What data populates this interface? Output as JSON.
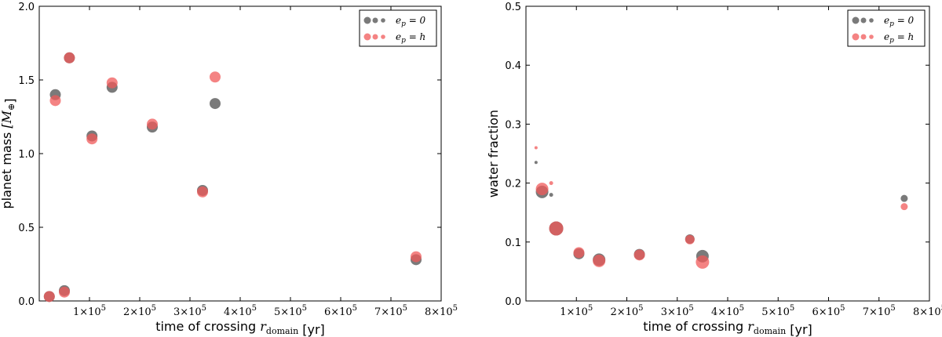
{
  "chart_data": [
    {
      "type": "scatter",
      "title": "",
      "xlabel": "time of crossing r_domain [yr]",
      "ylabel": "planet mass [M_⊕]",
      "xlim": [
        0,
        800000
      ],
      "ylim": [
        0,
        2.0
      ],
      "x_ticks": [
        100000,
        200000,
        300000,
        400000,
        500000,
        600000,
        700000,
        800000
      ],
      "x_tick_labels": [
        "1×10^5",
        "2×10^5",
        "3×10^5",
        "4×10^5",
        "5×10^5",
        "6×10^5",
        "7×10^5",
        "8×10^5"
      ],
      "y_ticks": [
        0.0,
        0.5,
        1.0,
        1.5,
        2.0
      ],
      "y_tick_labels": [
        "0.0",
        "0.5",
        "1.0",
        "1.5",
        "2.0"
      ],
      "legend_position": "top-right",
      "series": [
        {
          "name": "e_p = 0",
          "color": "#595959",
          "opacity": 0.8,
          "points": [
            {
              "x": 20000,
              "y": 0.03,
              "r": 7
            },
            {
              "x": 32000,
              "y": 1.4,
              "r": 7
            },
            {
              "x": 50000,
              "y": 0.07,
              "r": 7
            },
            {
              "x": 60000,
              "y": 1.65,
              "r": 7
            },
            {
              "x": 105000,
              "y": 1.12,
              "r": 7
            },
            {
              "x": 145000,
              "y": 1.45,
              "r": 7
            },
            {
              "x": 225000,
              "y": 1.18,
              "r": 7
            },
            {
              "x": 325000,
              "y": 0.75,
              "r": 7
            },
            {
              "x": 350000,
              "y": 1.34,
              "r": 7
            },
            {
              "x": 750000,
              "y": 0.28,
              "r": 7
            }
          ]
        },
        {
          "name": "e_p = h",
          "color": "#f05a5a",
          "opacity": 0.75,
          "points": [
            {
              "x": 20000,
              "y": 0.03,
              "r": 7
            },
            {
              "x": 32000,
              "y": 1.36,
              "r": 7
            },
            {
              "x": 50000,
              "y": 0.06,
              "r": 7
            },
            {
              "x": 60000,
              "y": 1.65,
              "r": 7
            },
            {
              "x": 105000,
              "y": 1.1,
              "r": 7
            },
            {
              "x": 145000,
              "y": 1.48,
              "r": 7
            },
            {
              "x": 225000,
              "y": 1.2,
              "r": 7
            },
            {
              "x": 325000,
              "y": 0.74,
              "r": 7
            },
            {
              "x": 350000,
              "y": 1.52,
              "r": 7
            },
            {
              "x": 750000,
              "y": 0.3,
              "r": 7
            }
          ]
        }
      ]
    },
    {
      "type": "scatter",
      "title": "",
      "xlabel": "time of crossing r_domain [yr]",
      "ylabel": "water fraction",
      "xlim": [
        0,
        800000
      ],
      "ylim": [
        0,
        0.5
      ],
      "x_ticks": [
        100000,
        200000,
        300000,
        400000,
        500000,
        600000,
        700000,
        800000
      ],
      "x_tick_labels": [
        "1×10^5",
        "2×10^5",
        "3×10^5",
        "4×10^5",
        "5×10^5",
        "6×10^5",
        "7×10^5",
        "8×10^5"
      ],
      "y_ticks": [
        0.0,
        0.1,
        0.2,
        0.3,
        0.4,
        0.5
      ],
      "y_tick_labels": [
        "0.0",
        "0.1",
        "0.2",
        "0.3",
        "0.4",
        "0.5"
      ],
      "legend_position": "top-right",
      "series": [
        {
          "name": "e_p = 0",
          "color": "#595959",
          "opacity": 0.8,
          "points": [
            {
              "x": 20000,
              "y": 0.235,
              "r": 2
            },
            {
              "x": 32000,
              "y": 0.185,
              "r": 8
            },
            {
              "x": 50000,
              "y": 0.18,
              "r": 2.5
            },
            {
              "x": 60000,
              "y": 0.123,
              "r": 9
            },
            {
              "x": 105000,
              "y": 0.08,
              "r": 7
            },
            {
              "x": 145000,
              "y": 0.07,
              "r": 8
            },
            {
              "x": 225000,
              "y": 0.079,
              "r": 7
            },
            {
              "x": 325000,
              "y": 0.105,
              "r": 6
            },
            {
              "x": 350000,
              "y": 0.076,
              "r": 8
            },
            {
              "x": 750000,
              "y": 0.174,
              "r": 4.5
            }
          ]
        },
        {
          "name": "e_p = h",
          "color": "#f05a5a",
          "opacity": 0.75,
          "points": [
            {
              "x": 20000,
              "y": 0.26,
              "r": 2
            },
            {
              "x": 32000,
              "y": 0.19,
              "r": 8
            },
            {
              "x": 50000,
              "y": 0.2,
              "r": 2.5
            },
            {
              "x": 60000,
              "y": 0.123,
              "r": 9
            },
            {
              "x": 105000,
              "y": 0.082,
              "r": 7
            },
            {
              "x": 145000,
              "y": 0.068,
              "r": 8
            },
            {
              "x": 225000,
              "y": 0.078,
              "r": 7
            },
            {
              "x": 325000,
              "y": 0.104,
              "r": 6
            },
            {
              "x": 350000,
              "y": 0.066,
              "r": 8.5
            },
            {
              "x": 750000,
              "y": 0.16,
              "r": 4.5
            }
          ]
        }
      ]
    }
  ]
}
